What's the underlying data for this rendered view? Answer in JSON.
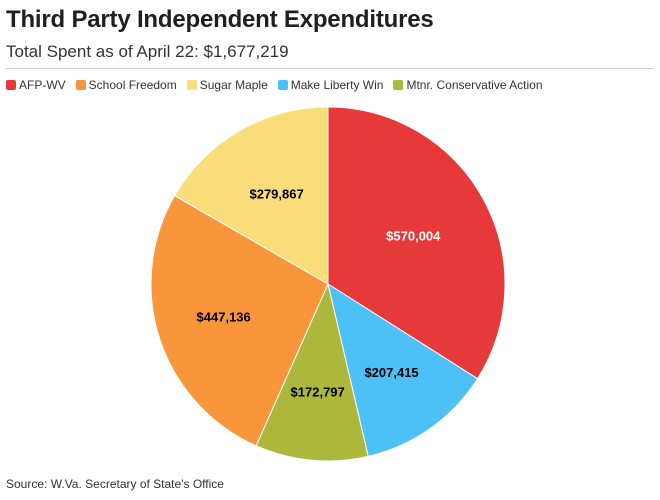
{
  "title": "Third Party Independent Expenditures",
  "subtitle": "Total Spent as of April 22: $1,677,219",
  "source": "Source: W.Va. Secretary of State's Office",
  "chart_data": {
    "type": "pie",
    "title": "Third Party Independent Expenditures",
    "subtitle": "Total Spent as of April 22: $1,677,219",
    "legend_position": "top-left",
    "slices": [
      {
        "name": "AFP-WV",
        "value": 570004,
        "label": "$570,004",
        "color": "#e8393a",
        "label_color": "#ffffff"
      },
      {
        "name": "Make Liberty Win",
        "value": 207415,
        "label": "$207,415",
        "color": "#4dc1f7",
        "label_color": "#000000"
      },
      {
        "name": "Mtnr. Conservative Action",
        "value": 172797,
        "label": "$172,797",
        "color": "#acb83b",
        "label_color": "#000000"
      },
      {
        "name": "School Freedom",
        "value": 447136,
        "label": "$447,136",
        "color": "#f9953a",
        "label_color": "#000000"
      },
      {
        "name": "Sugar Maple",
        "value": 279867,
        "label": "$279,867",
        "color": "#f9dd7b",
        "label_color": "#000000"
      }
    ],
    "legend": [
      {
        "name": "AFP-WV",
        "color": "#e8393a"
      },
      {
        "name": "School Freedom",
        "color": "#f9953a"
      },
      {
        "name": "Sugar Maple",
        "color": "#f9dd7b"
      },
      {
        "name": "Make Liberty Win",
        "color": "#4dc1f7"
      },
      {
        "name": "Mtnr. Conservative Action",
        "color": "#acb83b"
      }
    ]
  }
}
